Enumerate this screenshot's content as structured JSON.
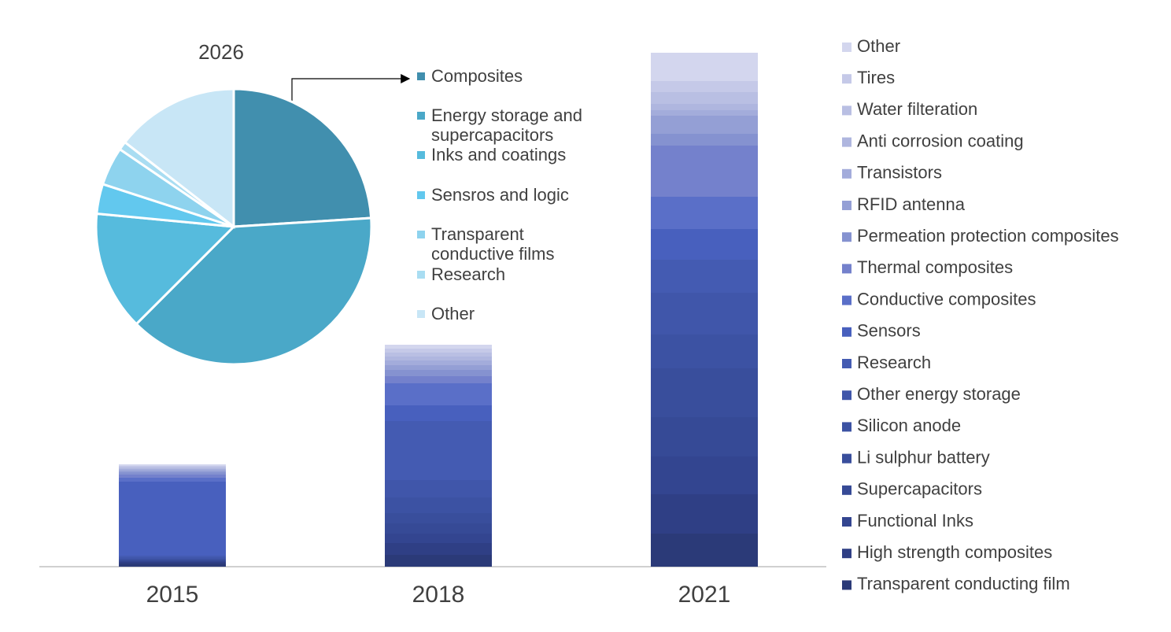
{
  "chart_data": [
    {
      "type": "bar",
      "categories": [
        "2015",
        "2018",
        "2021"
      ],
      "ylim": [
        0,
        660
      ],
      "series": [
        {
          "name": "Transparent conducting film",
          "color": "#2b3a78",
          "values": [
            4,
            15,
            42
          ]
        },
        {
          "name": "High strength composites",
          "color": "#2f3f85",
          "values": [
            2,
            15,
            50
          ]
        },
        {
          "name": "Functional Inks",
          "color": "#334590",
          "values": [
            1,
            12,
            48
          ]
        },
        {
          "name": "Supercapacitors",
          "color": "#364a96",
          "values": [
            1,
            13,
            50
          ]
        },
        {
          "name": "Li sulphur battery",
          "color": "#394e9c",
          "values": [
            1,
            13,
            62
          ]
        },
        {
          "name": "Silicon anode",
          "color": "#3c52a3",
          "values": [
            1,
            20,
            43
          ]
        },
        {
          "name": "Other energy storage",
          "color": "#4056aa",
          "values": [
            2,
            22,
            53
          ]
        },
        {
          "name": "Research",
          "color": "#445bb2",
          "values": [
            2,
            75,
            42
          ]
        },
        {
          "name": "Sensors",
          "color": "#4860be",
          "values": [
            94,
            20,
            39
          ]
        },
        {
          "name": "Conductive composites",
          "color": "#5a6fc8",
          "values": [
            5,
            28,
            41
          ]
        },
        {
          "name": "Thermal composites",
          "color": "#7481cc",
          "values": [
            4,
            9,
            65
          ]
        },
        {
          "name": "Permeation protection composites",
          "color": "#8592d0",
          "values": [
            3,
            8,
            15
          ]
        },
        {
          "name": "RFID antenna",
          "color": "#949fd5",
          "values": [
            2,
            6,
            23
          ]
        },
        {
          "name": "Transistors",
          "color": "#a3acdb",
          "values": [
            2,
            6,
            7
          ]
        },
        {
          "name": "Anti corrosion coating",
          "color": "#afb6df",
          "values": [
            1,
            5,
            8
          ]
        },
        {
          "name": "Water filteration",
          "color": "#b9bfe3",
          "values": [
            2,
            5,
            15
          ]
        },
        {
          "name": "Tires",
          "color": "#c5c9e8",
          "values": [
            1,
            5,
            14
          ]
        },
        {
          "name": "Other",
          "color": "#d3d6ee",
          "values": [
            2,
            5,
            36
          ]
        }
      ]
    },
    {
      "type": "pie",
      "title": "2026",
      "categories": [
        "Composites",
        "Energy storage and supercapacitors",
        "Inks and coatings",
        "Sensros and logic",
        "Transparent conductive films",
        "Research",
        "Other"
      ],
      "values": [
        24,
        38.5,
        14,
        3.5,
        4.5,
        1,
        14.5
      ],
      "colors": [
        "#418fae",
        "#4aa8c8",
        "#56bbdd",
        "#62c8ee",
        "#8ed3ee",
        "#a9ddf2",
        "#c8e6f6"
      ]
    }
  ]
}
